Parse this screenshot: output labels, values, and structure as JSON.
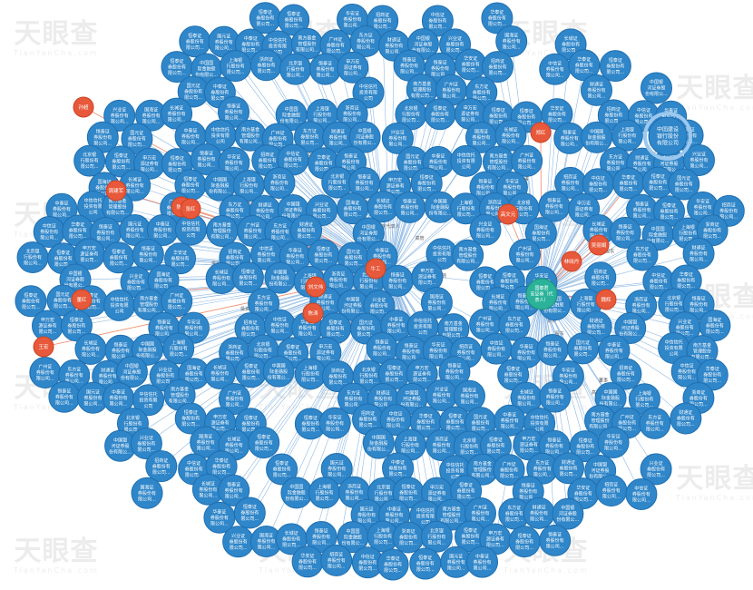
{
  "watermark": {
    "brand": "天眼查",
    "sub": "TianYanCha.com"
  },
  "colors": {
    "company_node": "#2f86c9",
    "company_node_border": "#1f6fb0",
    "person_node": "#e8583a",
    "person_node_border": "#cc4322",
    "center_node": "#2bb39a",
    "edge_main": "#8fb9e3",
    "edge_person": "#f08a6a",
    "label_text": "#ffffff"
  },
  "center": {
    "name": "国泰君安证券股份有限公司（代表人）",
    "lines": [
      "国泰君",
      "安证券（代",
      "表人）"
    ]
  },
  "persons": [
    "孙超",
    "周建军",
    "陈默",
    "董红",
    "王宏",
    "牛工",
    "陈涛",
    "刘文伟",
    "郑红",
    "高文元",
    "林晓丹",
    "吴丽娟",
    "魏辉",
    "张红"
  ],
  "highlight": {
    "lines": [
      "中国建设",
      "银行股份",
      "有限公司"
    ]
  },
  "companies": [
    [
      "恒泰证",
      "券股份有",
      "限公司..."
    ],
    [
      "恒泰证",
      "券股份有",
      "限公司..."
    ],
    [
      "华安证",
      "券股份有",
      "限公司..."
    ],
    [
      "招商证",
      "券股份有",
      "限公司..."
    ],
    [
      "中信证",
      "券股份有",
      "限公司..."
    ],
    [
      "华泰证",
      "券股份有",
      "限公司..."
    ],
    [
      "恒泰证",
      "券股份有",
      "限公司..."
    ],
    [
      "国元证",
      "券股份有",
      "限公司..."
    ],
    [
      "中泰证",
      "券股份有",
      "限公司..."
    ],
    [
      "中信信托",
      "投资有限",
      "公司"
    ],
    [
      "南方基金",
      "管理股份",
      "有限公司..."
    ],
    [
      "广州证",
      "券股份有",
      "限公司..."
    ],
    [
      "东方证",
      "券股份有",
      "限公司..."
    ],
    [
      "财通证",
      "券股份有",
      "限公司..."
    ],
    [
      "中国银",
      "河证券股",
      "份有限公..."
    ],
    [
      "兴业证",
      "券股份有",
      "限公司..."
    ],
    [
      "国海证",
      "券股份有",
      "限公司..."
    ],
    [
      "长城证",
      "券股份有",
      "限公司..."
    ],
    [
      "恒泰证",
      "券股份有",
      "限公司..."
    ],
    [
      "中国国",
      "际金融股",
      "份有限公..."
    ],
    [
      "上海银",
      "行股份有",
      "限公司..."
    ],
    [
      "浙商证",
      "券股份有",
      "限公司..."
    ],
    [
      "北京银",
      "行股份有",
      "限公司..."
    ],
    [
      "恒泰证",
      "券股份有",
      "限公司..."
    ],
    [
      "申万宏",
      "源证券有",
      "限公司..."
    ]
  ],
  "edge_labels": [
    "股东",
    "投资",
    "法定代表人",
    "董事",
    "监事",
    "高管"
  ]
}
